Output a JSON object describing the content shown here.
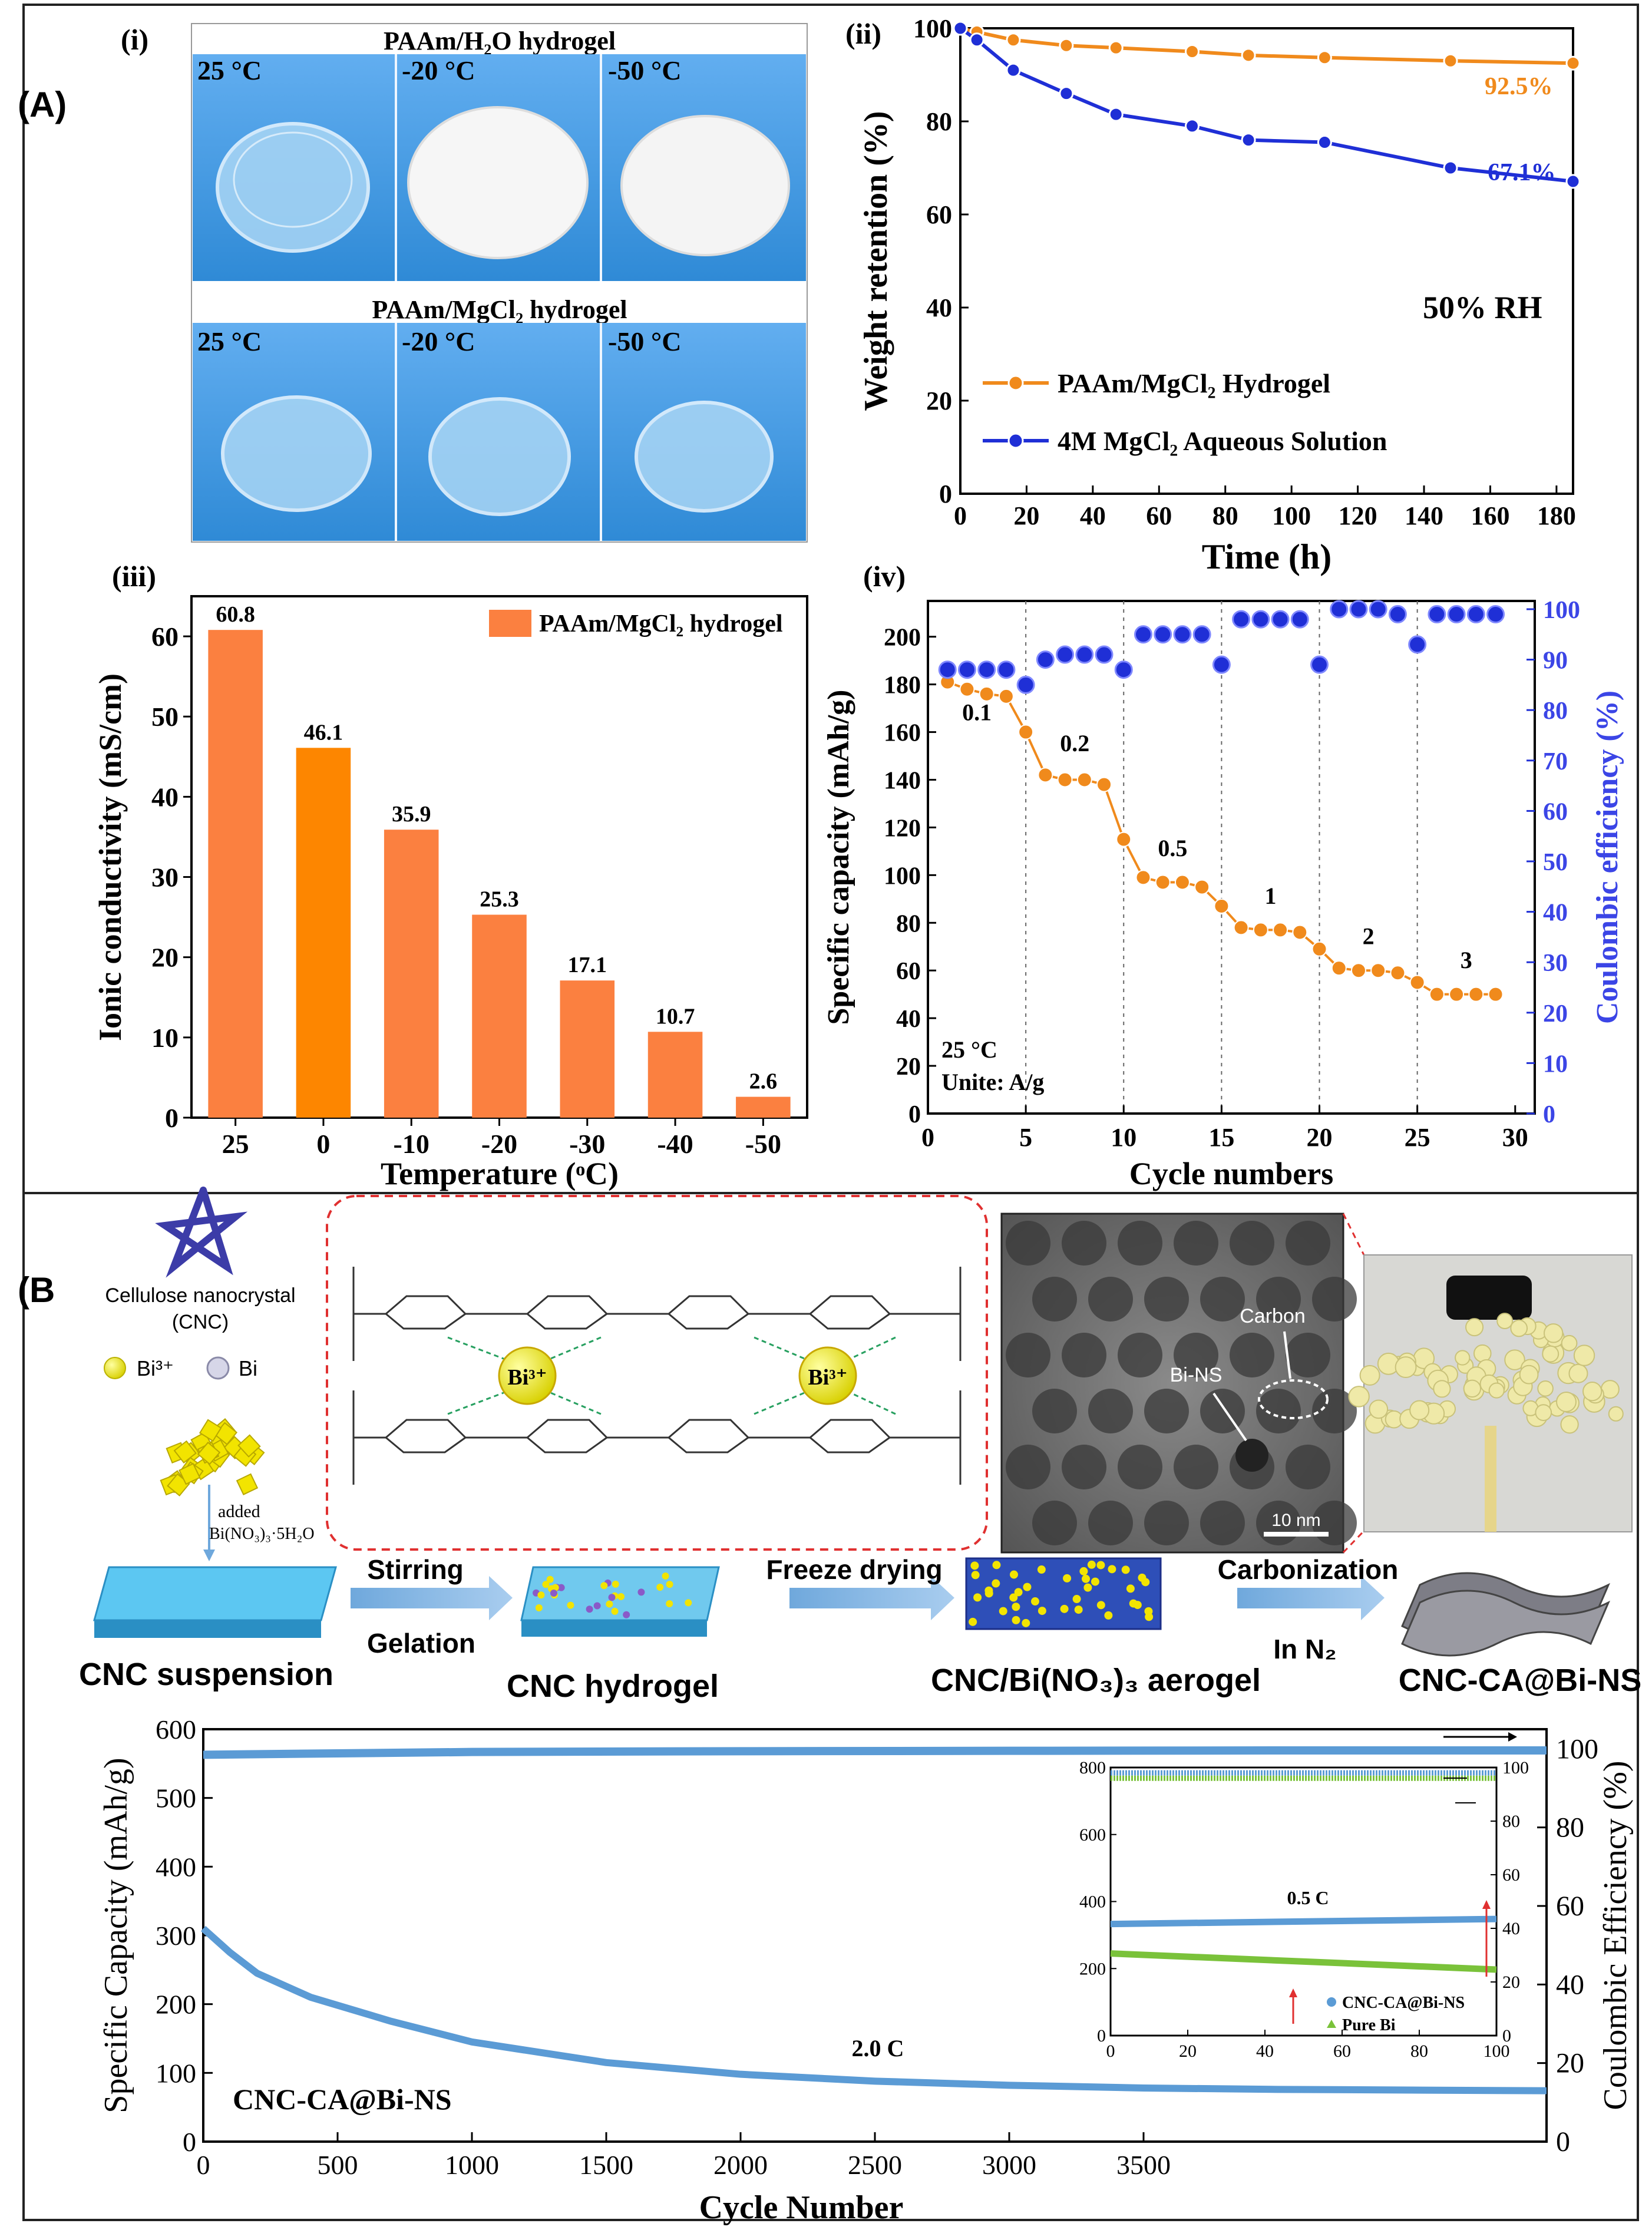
{
  "figure": {
    "panel_a_label": "(A)",
    "panel_b_label": "(B"
  },
  "photos": {
    "label": "(i)",
    "row1_title": "PAAm/H₂O hydrogel",
    "row2_title": "PAAm/MgCl₂ hydrogel",
    "temps": [
      "25 °C",
      "-20 °C",
      "-50 °C"
    ],
    "bg_color": "#3d9ae0"
  },
  "chart_data": [
    {
      "id": "ii",
      "type": "line",
      "panel_label": "(ii)",
      "xlabel": "Time (h)",
      "ylabel": "Weight retention (%)",
      "xlim": [
        0,
        185
      ],
      "ylim": [
        0,
        100
      ],
      "xticks": [
        0,
        20,
        40,
        60,
        80,
        100,
        120,
        140,
        160,
        180
      ],
      "yticks": [
        0,
        20,
        40,
        60,
        80,
        100
      ],
      "annotation": "50% RH",
      "legend_position": "lower-left",
      "series": [
        {
          "name": "PAAm/MgCl₂ Hydrogel",
          "color": "#f08a1c",
          "x": [
            0,
            5,
            16,
            32,
            47,
            70,
            87,
            110,
            148,
            185
          ],
          "y": [
            100,
            99.2,
            97.5,
            96.3,
            95.8,
            95,
            94.2,
            93.7,
            93,
            92.5
          ],
          "end_label": "92.5%"
        },
        {
          "name": "4M MgCl₂ Aqueous Solution",
          "color": "#1f2fd6",
          "x": [
            0,
            5,
            16,
            32,
            47,
            70,
            87,
            110,
            148,
            185
          ],
          "y": [
            100,
            97.5,
            91,
            86,
            81.5,
            79,
            76,
            75.5,
            70,
            67.1
          ],
          "end_label": "67.1%"
        }
      ]
    },
    {
      "id": "iii",
      "type": "bar",
      "panel_label": "(iii)",
      "xlabel": "Temperature (ᵒC)",
      "ylabel": "Ionic conductivity (mS/cm)",
      "categories": [
        "25",
        "0",
        "-10",
        "-20",
        "-30",
        "-40",
        "-50"
      ],
      "values": [
        60.8,
        46.1,
        35.9,
        25.3,
        17.1,
        10.7,
        2.6
      ],
      "value_labels": [
        "60.8",
        "46.1",
        "35.9",
        "25.3",
        "17.1",
        "10.7",
        "2.6"
      ],
      "ylim": [
        0,
        65
      ],
      "yticks": [
        0,
        10,
        20,
        30,
        40,
        50,
        60
      ],
      "legend": "PAAm/MgCl₂ hydrogel",
      "legend_position": "top-right",
      "bar_color": "#fb8040",
      "highlight_color": "#fd8600",
      "highlight_index": 1
    },
    {
      "id": "iv",
      "type": "scatter",
      "panel_label": "(iv)",
      "xlabel": "Cycle numbers",
      "ylabel": "Specific capacity (mAh/g)",
      "ylabel_right": "Coulombic efficiency (%)",
      "xlim": [
        0,
        31
      ],
      "ylim": [
        0,
        215
      ],
      "ylim_right": [
        0,
        100
      ],
      "xticks": [
        0,
        5,
        10,
        15,
        20,
        25,
        30
      ],
      "yticks": [
        0,
        20,
        40,
        60,
        80,
        100,
        120,
        140,
        160,
        180,
        200
      ],
      "yticks_right": [
        0,
        10,
        20,
        30,
        40,
        50,
        60,
        70,
        80,
        90,
        100
      ],
      "cycles": [
        1,
        2,
        3,
        4,
        5,
        6,
        7,
        8,
        9,
        10,
        11,
        12,
        13,
        14,
        15,
        16,
        17,
        18,
        19,
        20,
        21,
        22,
        23,
        24,
        25,
        26,
        27,
        28,
        29
      ],
      "capacity": [
        181,
        178,
        176,
        175,
        160,
        142,
        140,
        140,
        138,
        115,
        99,
        97,
        97,
        95,
        87,
        78,
        77,
        77,
        76,
        69,
        61,
        60,
        60,
        59,
        55,
        50,
        50,
        50,
        50
      ],
      "efficiency": [
        88,
        88,
        88,
        88,
        85,
        90,
        91,
        91,
        91,
        88,
        95,
        95,
        95,
        95,
        89,
        98,
        98,
        98,
        98,
        89,
        100,
        100,
        100,
        99,
        93,
        99,
        99,
        99,
        99
      ],
      "capacity_color": "#f08a1c",
      "efficiency_color": "#1f2fd6",
      "rate_labels": [
        {
          "text": "0.1",
          "x": 2.5,
          "y": 165
        },
        {
          "text": "0.2",
          "x": 7.5,
          "y": 152
        },
        {
          "text": "0.5",
          "x": 12.5,
          "y": 108
        },
        {
          "text": "1",
          "x": 17.5,
          "y": 88
        },
        {
          "text": "2",
          "x": 22.5,
          "y": 71
        },
        {
          "text": "3",
          "x": 27.5,
          "y": 61
        }
      ],
      "note_line1": "25 °C",
      "note_line2": "Unite: A/g"
    },
    {
      "id": "b-main",
      "type": "scatter",
      "xlabel": "Cycle Number",
      "ylabel": "Specific Capacity (mAh/g)",
      "ylabel_right": "Coulombic Efficiency (%)",
      "xlim": [
        0,
        5000
      ],
      "ylim": [
        0,
        600
      ],
      "ylim_right": [
        0,
        105
      ],
      "xticks": [
        0,
        500,
        1000,
        1500,
        2000,
        2500,
        3000,
        3500
      ],
      "yticks": [
        0,
        100,
        200,
        300,
        400,
        500,
        600
      ],
      "yticks_right": [
        0,
        20,
        40,
        60,
        80,
        100
      ],
      "capacity_curve": {
        "x": [
          0,
          100,
          200,
          400,
          700,
          1000,
          1500,
          2000,
          2500,
          3000,
          3500,
          4000,
          4500,
          5000
        ],
        "y": [
          310,
          275,
          245,
          210,
          175,
          145,
          115,
          98,
          88,
          82,
          78,
          76,
          75,
          74
        ]
      },
      "efficiency_curve": {
        "x": [
          0,
          1000,
          2000,
          3000,
          4000,
          5000
        ],
        "y": [
          98.5,
          99.2,
          99.4,
          99.5,
          99.6,
          99.6
        ]
      },
      "color": "#5b9bd5",
      "rate_label": "2.0 C",
      "sample_label": "CNC-CA@Bi-NS"
    },
    {
      "id": "b-inset",
      "type": "scatter",
      "xlim": [
        0,
        100
      ],
      "ylim": [
        0,
        800
      ],
      "ylim_right": [
        0,
        100
      ],
      "xticks": [
        0,
        20,
        40,
        60,
        80,
        100
      ],
      "yticks": [
        0,
        200,
        400,
        600,
        800
      ],
      "yticks_right": [
        0,
        20,
        40,
        60,
        80,
        100
      ],
      "rate_label": "0.5 C",
      "legend_position": "lower-right",
      "series": [
        {
          "name": "CNC-CA@Bi-NS",
          "color": "#5b9bd5",
          "capacity_start": 333,
          "capacity_end": 348,
          "efficiency": 98
        },
        {
          "name": "Pure Bi",
          "color": "#7ac23a",
          "capacity_start": 245,
          "capacity_end": 197,
          "efficiency": 96
        }
      ]
    }
  ],
  "scheme": {
    "cnc_label_line1": "Cellulose nanocrystal",
    "cnc_label_line2": "(CNC)",
    "bi_ion_legend": "Bi³⁺",
    "bi_legend": "Bi",
    "added_label": "added",
    "added_reagent": "Bi(NO₃)₃·5H₂O",
    "chem_ion": "Bi³⁺",
    "tem_carbon": "Carbon",
    "tem_bins": "Bi-NS",
    "tem_scale": "10 nm",
    "steps": [
      {
        "name": "CNC suspension"
      },
      {
        "name": "CNC hydrogel"
      },
      {
        "name": "CNC/Bi(NO₃)₃ aerogel"
      },
      {
        "name": "CNC-CA@Bi-NS"
      }
    ],
    "arrows": [
      {
        "top": "Stirring",
        "bottom": "Gelation"
      },
      {
        "top": "Freeze drying",
        "bottom": ""
      },
      {
        "top": "Carbonization",
        "bottom": "In N₂"
      }
    ]
  }
}
